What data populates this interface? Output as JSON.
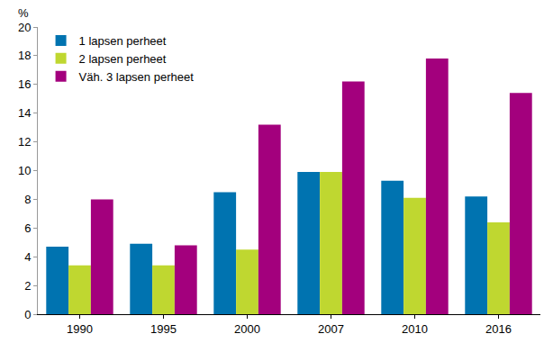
{
  "chart_data": {
    "type": "bar",
    "y_label": "%",
    "categories": [
      "1990",
      "1995",
      "2000",
      "2007",
      "2010",
      "2016"
    ],
    "series": [
      {
        "name": "1 lapsen perheet",
        "color": "#0073b0",
        "values": [
          4.7,
          4.9,
          8.5,
          9.9,
          9.3,
          8.2
        ]
      },
      {
        "name": "2 lapsen perheet",
        "color": "#bfd730",
        "values": [
          3.4,
          3.4,
          4.5,
          9.9,
          8.1,
          6.4
        ]
      },
      {
        "name": "Väh. 3 lapsen perheet",
        "color": "#a3007d",
        "values": [
          8.0,
          4.8,
          13.2,
          16.2,
          17.8,
          15.4
        ]
      }
    ],
    "ylim": [
      0,
      20
    ],
    "yticks": [
      0,
      2,
      4,
      6,
      8,
      10,
      12,
      14,
      16,
      18,
      20
    ],
    "grid": false,
    "legend": "top-left"
  }
}
